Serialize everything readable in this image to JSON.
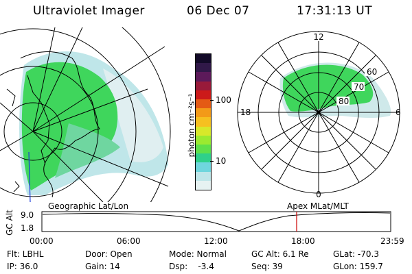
{
  "header": {
    "title": "Ultraviolet Imager",
    "date": "06 Dec 07",
    "time": "17:31:13 UT"
  },
  "geo_panel": {
    "label": "Geographic Lat/Lon"
  },
  "polar_panel": {
    "label": "Apex MLat/MLT",
    "mlt_labels": [
      "12",
      "18",
      "6",
      "0"
    ],
    "lat_labels": [
      "60",
      "70",
      "80"
    ]
  },
  "colorbar": {
    "unit_label": "photon cm⁻²s⁻¹",
    "ticks": [
      "100",
      "10"
    ],
    "colors": [
      "#e6f2f2",
      "#bfe6e9",
      "#6fd6dd",
      "#2fd08a",
      "#5ee04a",
      "#9bea30",
      "#d8e82a",
      "#f6c020",
      "#f39a18",
      "#e45a14",
      "#cc1a1a",
      "#991a3a",
      "#5c1a5a",
      "#301848",
      "#120a28"
    ]
  },
  "timeline": {
    "ylabel": "GC Alt",
    "y_ticks": [
      "9.0",
      "1.8"
    ],
    "x_ticks": [
      "00:00",
      "06:00",
      "12:00",
      "18:00",
      "23:59"
    ],
    "marker_color": "#cc0000",
    "marker_time": "17:31"
  },
  "info": {
    "row1": [
      "Flt: LBHL",
      "Door: Open",
      "Mode: Normal",
      "GC Alt: 6.1 Re",
      "GLat: -70.3"
    ],
    "row2": [
      "IP: 36.0",
      "Gain: 14",
      "Dsp:    -3.4",
      "Seq: 39",
      "GLon: 159.7"
    ]
  }
}
